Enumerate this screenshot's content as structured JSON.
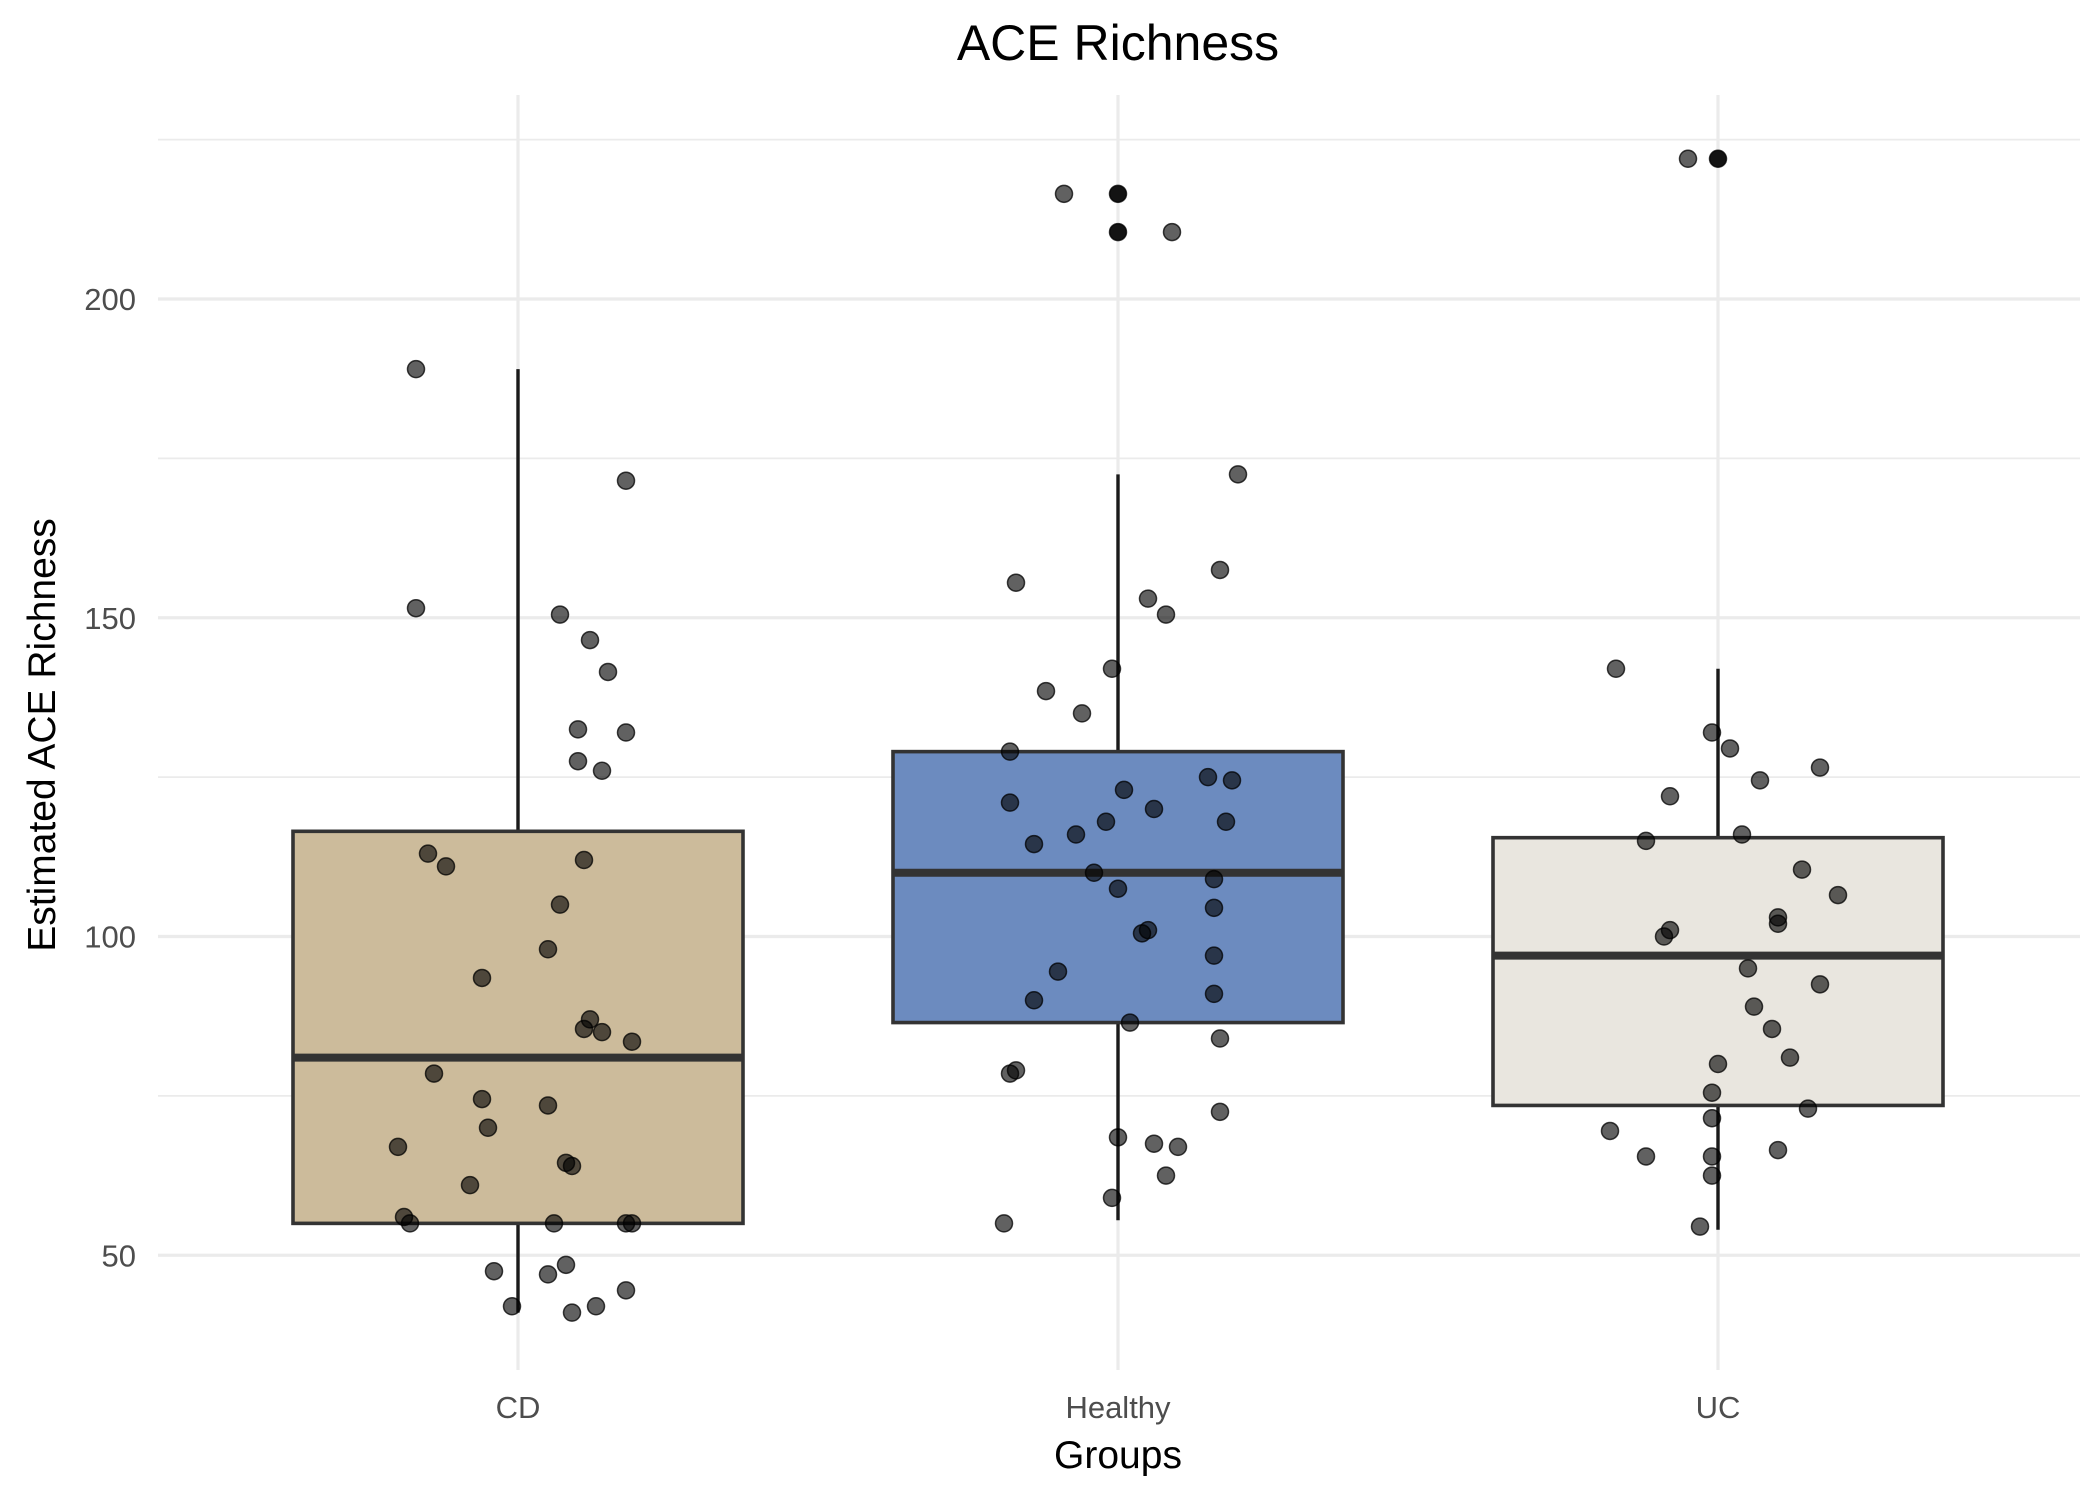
{
  "chart_data": {
    "type": "box",
    "title": "ACE Richness",
    "xlabel": "Groups",
    "ylabel": "Estimated ACE Richness",
    "categories": [
      "CD",
      "Healthy",
      "UC"
    ],
    "ylim": [
      32,
      232
    ],
    "yticks": [
      50,
      100,
      150,
      200
    ],
    "yminor": [
      75,
      125,
      175,
      225
    ],
    "grid": true,
    "legend": "none",
    "colors": {
      "CD": "#ccbb9b",
      "Healthy": "#6c8bbf",
      "UC": "#e9e6df",
      "box_stroke": "#333333",
      "points": "#000000"
    },
    "boxes": [
      {
        "group": "CD",
        "whisker_low": 41,
        "q1": 55,
        "median": 81,
        "q3": 116.5,
        "whisker_high": 189,
        "outliers": []
      },
      {
        "group": "Healthy",
        "whisker_low": 55.5,
        "q1": 86.5,
        "median": 110,
        "q3": 129,
        "whisker_high": 172.5,
        "outliers": [
          216.5,
          210.5
        ]
      },
      {
        "group": "UC",
        "whisker_low": 54,
        "q1": 73.5,
        "median": 97,
        "q3": 115.5,
        "whisker_high": 142,
        "outliers": [
          222
        ]
      }
    ],
    "points": [
      {
        "group": "CD",
        "jitter": -0.17,
        "y": 189
      },
      {
        "group": "CD",
        "jitter": 0.18,
        "y": 171.5
      },
      {
        "group": "CD",
        "jitter": -0.17,
        "y": 151.5
      },
      {
        "group": "CD",
        "jitter": 0.07,
        "y": 150.5
      },
      {
        "group": "CD",
        "jitter": 0.12,
        "y": 146.5
      },
      {
        "group": "CD",
        "jitter": 0.15,
        "y": 141.5
      },
      {
        "group": "CD",
        "jitter": 0.1,
        "y": 132.5
      },
      {
        "group": "CD",
        "jitter": 0.18,
        "y": 132
      },
      {
        "group": "CD",
        "jitter": 0.1,
        "y": 127.5
      },
      {
        "group": "CD",
        "jitter": 0.14,
        "y": 126
      },
      {
        "group": "CD",
        "jitter": -0.15,
        "y": 113
      },
      {
        "group": "CD",
        "jitter": -0.12,
        "y": 111
      },
      {
        "group": "CD",
        "jitter": 0.11,
        "y": 112
      },
      {
        "group": "CD",
        "jitter": 0.07,
        "y": 105
      },
      {
        "group": "CD",
        "jitter": 0.05,
        "y": 98
      },
      {
        "group": "CD",
        "jitter": -0.06,
        "y": 93.5
      },
      {
        "group": "CD",
        "jitter": 0.12,
        "y": 87
      },
      {
        "group": "CD",
        "jitter": 0.11,
        "y": 85.5
      },
      {
        "group": "CD",
        "jitter": 0.14,
        "y": 85
      },
      {
        "group": "CD",
        "jitter": 0.19,
        "y": 83.5
      },
      {
        "group": "CD",
        "jitter": -0.14,
        "y": 78.5
      },
      {
        "group": "CD",
        "jitter": -0.06,
        "y": 74.5
      },
      {
        "group": "CD",
        "jitter": 0.05,
        "y": 73.5
      },
      {
        "group": "CD",
        "jitter": -0.05,
        "y": 70
      },
      {
        "group": "CD",
        "jitter": -0.2,
        "y": 67
      },
      {
        "group": "CD",
        "jitter": 0.08,
        "y": 64.5
      },
      {
        "group": "CD",
        "jitter": 0.09,
        "y": 64
      },
      {
        "group": "CD",
        "jitter": -0.08,
        "y": 61
      },
      {
        "group": "CD",
        "jitter": -0.19,
        "y": 56
      },
      {
        "group": "CD",
        "jitter": -0.18,
        "y": 55
      },
      {
        "group": "CD",
        "jitter": 0.06,
        "y": 55
      },
      {
        "group": "CD",
        "jitter": 0.18,
        "y": 55
      },
      {
        "group": "CD",
        "jitter": 0.19,
        "y": 55
      },
      {
        "group": "CD",
        "jitter": 0.08,
        "y": 48.5
      },
      {
        "group": "CD",
        "jitter": -0.04,
        "y": 47.5
      },
      {
        "group": "CD",
        "jitter": 0.05,
        "y": 47
      },
      {
        "group": "CD",
        "jitter": 0.18,
        "y": 44.5
      },
      {
        "group": "CD",
        "jitter": -0.01,
        "y": 42
      },
      {
        "group": "CD",
        "jitter": 0.13,
        "y": 42
      },
      {
        "group": "CD",
        "jitter": 0.09,
        "y": 41
      },
      {
        "group": "Healthy",
        "jitter": -0.09,
        "y": 216.5
      },
      {
        "group": "Healthy",
        "jitter": 0.0,
        "y": 216.5
      },
      {
        "group": "Healthy",
        "jitter": 0.0,
        "y": 210.5
      },
      {
        "group": "Healthy",
        "jitter": 0.09,
        "y": 210.5
      },
      {
        "group": "Healthy",
        "jitter": 0.2,
        "y": 172.5
      },
      {
        "group": "Healthy",
        "jitter": 0.17,
        "y": 157.5
      },
      {
        "group": "Healthy",
        "jitter": -0.17,
        "y": 155.5
      },
      {
        "group": "Healthy",
        "jitter": 0.05,
        "y": 153
      },
      {
        "group": "Healthy",
        "jitter": 0.08,
        "y": 150.5
      },
      {
        "group": "Healthy",
        "jitter": -0.01,
        "y": 142
      },
      {
        "group": "Healthy",
        "jitter": -0.12,
        "y": 138.5
      },
      {
        "group": "Healthy",
        "jitter": -0.06,
        "y": 135
      },
      {
        "group": "Healthy",
        "jitter": -0.18,
        "y": 129
      },
      {
        "group": "Healthy",
        "jitter": 0.15,
        "y": 125
      },
      {
        "group": "Healthy",
        "jitter": 0.19,
        "y": 124.5
      },
      {
        "group": "Healthy",
        "jitter": 0.01,
        "y": 123
      },
      {
        "group": "Healthy",
        "jitter": -0.18,
        "y": 121
      },
      {
        "group": "Healthy",
        "jitter": 0.06,
        "y": 120
      },
      {
        "group": "Healthy",
        "jitter": -0.02,
        "y": 118
      },
      {
        "group": "Healthy",
        "jitter": 0.18,
        "y": 118
      },
      {
        "group": "Healthy",
        "jitter": -0.07,
        "y": 116
      },
      {
        "group": "Healthy",
        "jitter": -0.14,
        "y": 114.5
      },
      {
        "group": "Healthy",
        "jitter": -0.04,
        "y": 110
      },
      {
        "group": "Healthy",
        "jitter": 0.16,
        "y": 109
      },
      {
        "group": "Healthy",
        "jitter": 0.0,
        "y": 107.5
      },
      {
        "group": "Healthy",
        "jitter": 0.16,
        "y": 104.5
      },
      {
        "group": "Healthy",
        "jitter": 0.05,
        "y": 101
      },
      {
        "group": "Healthy",
        "jitter": 0.04,
        "y": 100.5
      },
      {
        "group": "Healthy",
        "jitter": 0.16,
        "y": 97
      },
      {
        "group": "Healthy",
        "jitter": -0.1,
        "y": 94.5
      },
      {
        "group": "Healthy",
        "jitter": 0.16,
        "y": 91
      },
      {
        "group": "Healthy",
        "jitter": -0.14,
        "y": 90
      },
      {
        "group": "Healthy",
        "jitter": 0.02,
        "y": 86.5
      },
      {
        "group": "Healthy",
        "jitter": 0.17,
        "y": 84
      },
      {
        "group": "Healthy",
        "jitter": -0.17,
        "y": 79
      },
      {
        "group": "Healthy",
        "jitter": -0.18,
        "y": 78.5
      },
      {
        "group": "Healthy",
        "jitter": 0.17,
        "y": 72.5
      },
      {
        "group": "Healthy",
        "jitter": 0.0,
        "y": 68.5
      },
      {
        "group": "Healthy",
        "jitter": 0.06,
        "y": 67.5
      },
      {
        "group": "Healthy",
        "jitter": 0.1,
        "y": 67
      },
      {
        "group": "Healthy",
        "jitter": 0.08,
        "y": 62.5
      },
      {
        "group": "Healthy",
        "jitter": -0.01,
        "y": 59
      },
      {
        "group": "Healthy",
        "jitter": -0.19,
        "y": 55
      },
      {
        "group": "UC",
        "jitter": -0.05,
        "y": 222
      },
      {
        "group": "UC",
        "jitter": 0.0,
        "y": 222
      },
      {
        "group": "UC",
        "jitter": -0.17,
        "y": 142
      },
      {
        "group": "UC",
        "jitter": -0.01,
        "y": 132
      },
      {
        "group": "UC",
        "jitter": 0.02,
        "y": 129.5
      },
      {
        "group": "UC",
        "jitter": 0.17,
        "y": 126.5
      },
      {
        "group": "UC",
        "jitter": 0.07,
        "y": 124.5
      },
      {
        "group": "UC",
        "jitter": -0.08,
        "y": 122
      },
      {
        "group": "UC",
        "jitter": 0.04,
        "y": 116
      },
      {
        "group": "UC",
        "jitter": -0.12,
        "y": 115
      },
      {
        "group": "UC",
        "jitter": 0.14,
        "y": 110.5
      },
      {
        "group": "UC",
        "jitter": 0.2,
        "y": 106.5
      },
      {
        "group": "UC",
        "jitter": 0.1,
        "y": 103
      },
      {
        "group": "UC",
        "jitter": 0.1,
        "y": 102
      },
      {
        "group": "UC",
        "jitter": -0.08,
        "y": 101
      },
      {
        "group": "UC",
        "jitter": -0.09,
        "y": 100
      },
      {
        "group": "UC",
        "jitter": 0.05,
        "y": 95
      },
      {
        "group": "UC",
        "jitter": 0.17,
        "y": 92.5
      },
      {
        "group": "UC",
        "jitter": 0.06,
        "y": 89
      },
      {
        "group": "UC",
        "jitter": 0.09,
        "y": 85.5
      },
      {
        "group": "UC",
        "jitter": 0.12,
        "y": 81
      },
      {
        "group": "UC",
        "jitter": 0.0,
        "y": 80
      },
      {
        "group": "UC",
        "jitter": -0.01,
        "y": 75.5
      },
      {
        "group": "UC",
        "jitter": 0.15,
        "y": 73
      },
      {
        "group": "UC",
        "jitter": -0.01,
        "y": 71.5
      },
      {
        "group": "UC",
        "jitter": -0.18,
        "y": 69.5
      },
      {
        "group": "UC",
        "jitter": 0.1,
        "y": 66.5
      },
      {
        "group": "UC",
        "jitter": -0.12,
        "y": 65.5
      },
      {
        "group": "UC",
        "jitter": -0.01,
        "y": 65.5
      },
      {
        "group": "UC",
        "jitter": -0.01,
        "y": 62.5
      },
      {
        "group": "UC",
        "jitter": -0.03,
        "y": 54.5
      }
    ]
  }
}
